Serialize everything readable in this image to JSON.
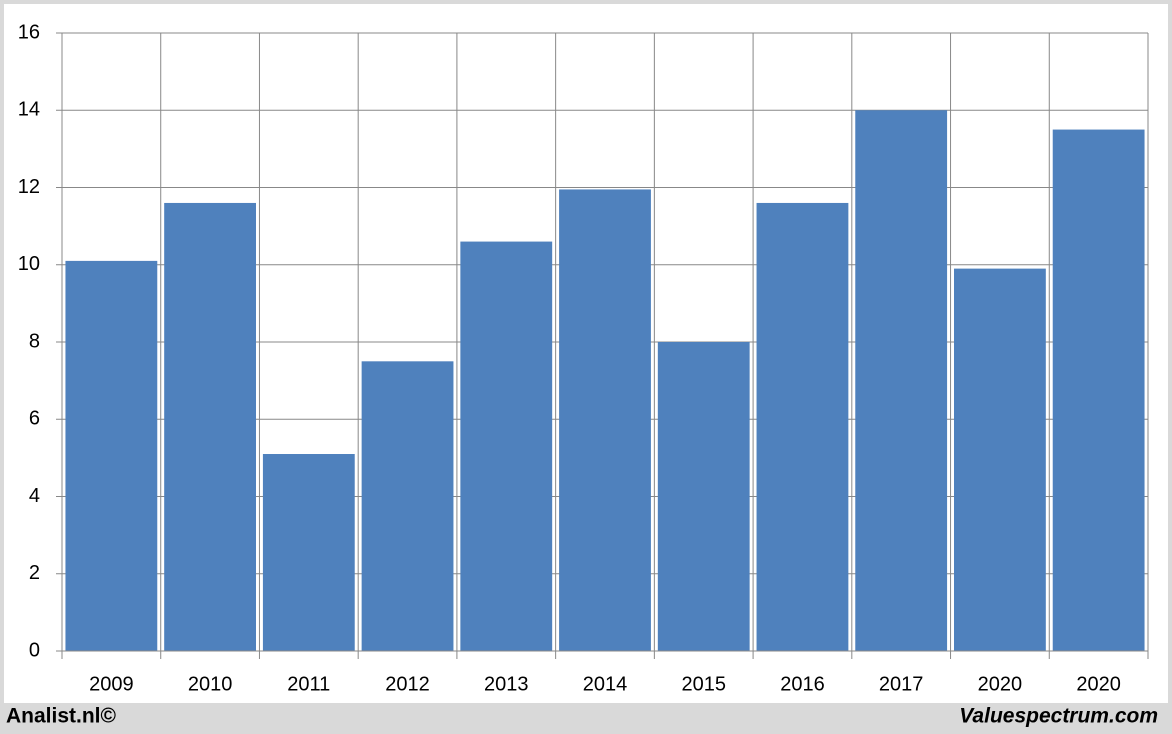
{
  "chart_data": {
    "type": "bar",
    "categories": [
      "2009",
      "2010",
      "2011",
      "2012",
      "2013",
      "2014",
      "2015",
      "2016",
      "2017",
      "2020",
      "2020"
    ],
    "values": [
      10.1,
      11.6,
      5.1,
      7.5,
      10.6,
      11.95,
      8.0,
      11.6,
      14.0,
      9.9,
      13.5
    ],
    "color": "#4f81bd",
    "ylim": [
      0,
      16
    ],
    "yticks": [
      0,
      2,
      4,
      6,
      8,
      10,
      12,
      14,
      16
    ],
    "grid": true,
    "footer_left": "Analist.nl©",
    "footer_right": "Valuespectrum.com"
  }
}
